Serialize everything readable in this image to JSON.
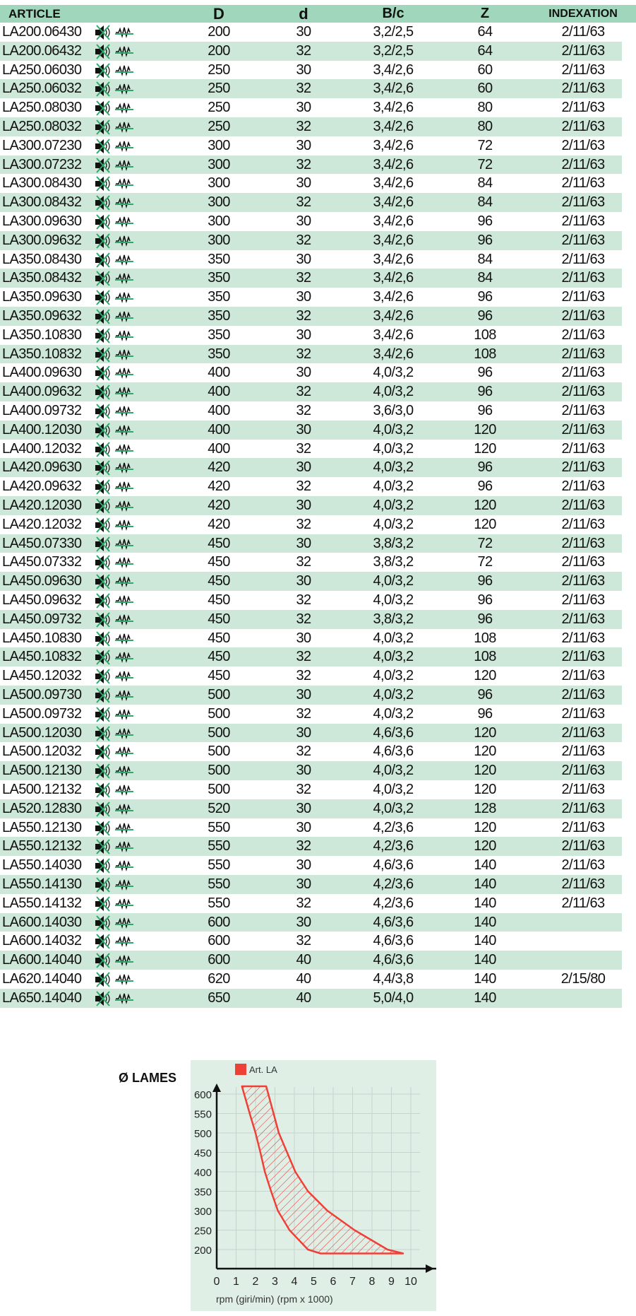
{
  "header": {
    "article": "ARTICLE",
    "D": "D",
    "d": "d",
    "bc": "B/c",
    "Z": "Z",
    "indexation": "INDEXATION"
  },
  "icons": [
    "speaker-muted-icon",
    "wave-crossed-icon"
  ],
  "colors": {
    "header_bg": "#a0d6bb",
    "row_alt_bg": "#cde7d8",
    "icon_cross": "#2ea86a",
    "chart_bg": "#e0efe6",
    "chart_red": "#ee4036"
  },
  "rows": [
    [
      "LA200.06430",
      "200",
      "30",
      "3,2/2,5",
      "64",
      "2/11/63"
    ],
    [
      "LA200.06432",
      "200",
      "32",
      "3,2/2,5",
      "64",
      "2/11/63"
    ],
    [
      "LA250.06030",
      "250",
      "30",
      "3,4/2,6",
      "60",
      "2/11/63"
    ],
    [
      "LA250.06032",
      "250",
      "32",
      "3,4/2,6",
      "60",
      "2/11/63"
    ],
    [
      "LA250.08030",
      "250",
      "30",
      "3,4/2,6",
      "80",
      "2/11/63"
    ],
    [
      "LA250.08032",
      "250",
      "32",
      "3,4/2,6",
      "80",
      "2/11/63"
    ],
    [
      "LA300.07230",
      "300",
      "30",
      "3,4/2,6",
      "72",
      "2/11/63"
    ],
    [
      "LA300.07232",
      "300",
      "32",
      "3,4/2,6",
      "72",
      "2/11/63"
    ],
    [
      "LA300.08430",
      "300",
      "30",
      "3,4/2,6",
      "84",
      "2/11/63"
    ],
    [
      "LA300.08432",
      "300",
      "32",
      "3,4/2,6",
      "84",
      "2/11/63"
    ],
    [
      "LA300.09630",
      "300",
      "30",
      "3,4/2,6",
      "96",
      "2/11/63"
    ],
    [
      "LA300.09632",
      "300",
      "32",
      "3,4/2,6",
      "96",
      "2/11/63"
    ],
    [
      "LA350.08430",
      "350",
      "30",
      "3,4/2,6",
      "84",
      "2/11/63"
    ],
    [
      "LA350.08432",
      "350",
      "32",
      "3,4/2,6",
      "84",
      "2/11/63"
    ],
    [
      "LA350.09630",
      "350",
      "30",
      "3,4/2,6",
      "96",
      "2/11/63"
    ],
    [
      "LA350.09632",
      "350",
      "32",
      "3,4/2,6",
      "96",
      "2/11/63"
    ],
    [
      "LA350.10830",
      "350",
      "30",
      "3,4/2,6",
      "108",
      "2/11/63"
    ],
    [
      "LA350.10832",
      "350",
      "32",
      "3,4/2,6",
      "108",
      "2/11/63"
    ],
    [
      "LA400.09630",
      "400",
      "30",
      "4,0/3,2",
      "96",
      "2/11/63"
    ],
    [
      "LA400.09632",
      "400",
      "32",
      "4,0/3,2",
      "96",
      "2/11/63"
    ],
    [
      "LA400.09732",
      "400",
      "32",
      "3,6/3,0",
      "96",
      "2/11/63"
    ],
    [
      "LA400.12030",
      "400",
      "30",
      "4,0/3,2",
      "120",
      "2/11/63"
    ],
    [
      "LA400.12032",
      "400",
      "32",
      "4,0/3,2",
      "120",
      "2/11/63"
    ],
    [
      "LA420.09630",
      "420",
      "30",
      "4,0/3,2",
      "96",
      "2/11/63"
    ],
    [
      "LA420.09632",
      "420",
      "32",
      "4,0/3,2",
      "96",
      "2/11/63"
    ],
    [
      "LA420.12030",
      "420",
      "30",
      "4,0/3,2",
      "120",
      "2/11/63"
    ],
    [
      "LA420.12032",
      "420",
      "32",
      "4,0/3,2",
      "120",
      "2/11/63"
    ],
    [
      "LA450.07330",
      "450",
      "30",
      "3,8/3,2",
      "72",
      "2/11/63"
    ],
    [
      "LA450.07332",
      "450",
      "32",
      "3,8/3,2",
      "72",
      "2/11/63"
    ],
    [
      "LA450.09630",
      "450",
      "30",
      "4,0/3,2",
      "96",
      "2/11/63"
    ],
    [
      "LA450.09632",
      "450",
      "32",
      "4,0/3,2",
      "96",
      "2/11/63"
    ],
    [
      "LA450.09732",
      "450",
      "32",
      "3,8/3,2",
      "96",
      "2/11/63"
    ],
    [
      "LA450.10830",
      "450",
      "30",
      "4,0/3,2",
      "108",
      "2/11/63"
    ],
    [
      "LA450.10832",
      "450",
      "32",
      "4,0/3,2",
      "108",
      "2/11/63"
    ],
    [
      "LA450.12032",
      "450",
      "32",
      "4,0/3,2",
      "120",
      "2/11/63"
    ],
    [
      "LA500.09730",
      "500",
      "30",
      "4,0/3,2",
      "96",
      "2/11/63"
    ],
    [
      "LA500.09732",
      "500",
      "32",
      "4,0/3,2",
      "96",
      "2/11/63"
    ],
    [
      "LA500.12030",
      "500",
      "30",
      "4,6/3,6",
      "120",
      "2/11/63"
    ],
    [
      "LA500.12032",
      "500",
      "32",
      "4,6/3,6",
      "120",
      "2/11/63"
    ],
    [
      "LA500.12130",
      "500",
      "30",
      "4,0/3,2",
      "120",
      "2/11/63"
    ],
    [
      "LA500.12132",
      "500",
      "32",
      "4,0/3,2",
      "120",
      "2/11/63"
    ],
    [
      "LA520.12830",
      "520",
      "30",
      "4,0/3,2",
      "128",
      "2/11/63"
    ],
    [
      "LA550.12130",
      "550",
      "30",
      "4,2/3,6",
      "120",
      "2/11/63"
    ],
    [
      "LA550.12132",
      "550",
      "32",
      "4,2/3,6",
      "120",
      "2/11/63"
    ],
    [
      "LA550.14030",
      "550",
      "30",
      "4,6/3,6",
      "140",
      "2/11/63"
    ],
    [
      "LA550.14130",
      "550",
      "30",
      "4,2/3,6",
      "140",
      "2/11/63"
    ],
    [
      "LA550.14132",
      "550",
      "32",
      "4,2/3,6",
      "140",
      "2/11/63"
    ],
    [
      "LA600.14030",
      "600",
      "30",
      "4,6/3,6",
      "140",
      ""
    ],
    [
      "LA600.14032",
      "600",
      "32",
      "4,6/3,6",
      "140",
      ""
    ],
    [
      "LA600.14040",
      "600",
      "40",
      "4,6/3,6",
      "140",
      ""
    ],
    [
      "LA620.14040",
      "620",
      "40",
      "4,4/3,8",
      "140",
      "2/15/80"
    ],
    [
      "LA650.14040",
      "650",
      "40",
      "5,0/4,0",
      "140",
      ""
    ]
  ],
  "chart_data": {
    "type": "area",
    "ylabel": "Ø LAMES",
    "xlabel": "rpm (giri/min) (rpm x 1000)",
    "legend": {
      "label": "Art. LA",
      "placement": "top-left"
    },
    "xlim": [
      0,
      10
    ],
    "ylim": [
      200,
      600
    ],
    "x_ticks": [
      "0",
      "1",
      "2",
      "3",
      "4",
      "5",
      "6",
      "7",
      "8",
      "9",
      "10"
    ],
    "y_ticks": [
      "200",
      "250",
      "300",
      "350",
      "400",
      "450",
      "500",
      "550",
      "600"
    ],
    "grid": true,
    "series": [
      {
        "name": "Art. LA",
        "hatched": true,
        "lower_boundary": [
          [
            1.3,
            620
          ],
          [
            1.7,
            550
          ],
          [
            2.0,
            500
          ],
          [
            2.25,
            450
          ],
          [
            2.48,
            400
          ],
          [
            2.8,
            350
          ],
          [
            3.15,
            300
          ],
          [
            3.75,
            250
          ],
          [
            4.7,
            200
          ],
          [
            5.35,
            190
          ]
        ],
        "upper_boundary": [
          [
            2.55,
            620
          ],
          [
            3.2,
            500
          ],
          [
            4.05,
            400
          ],
          [
            4.7,
            350
          ],
          [
            5.7,
            300
          ],
          [
            7.1,
            250
          ],
          [
            8.8,
            200
          ],
          [
            9.6,
            190
          ]
        ]
      }
    ]
  }
}
